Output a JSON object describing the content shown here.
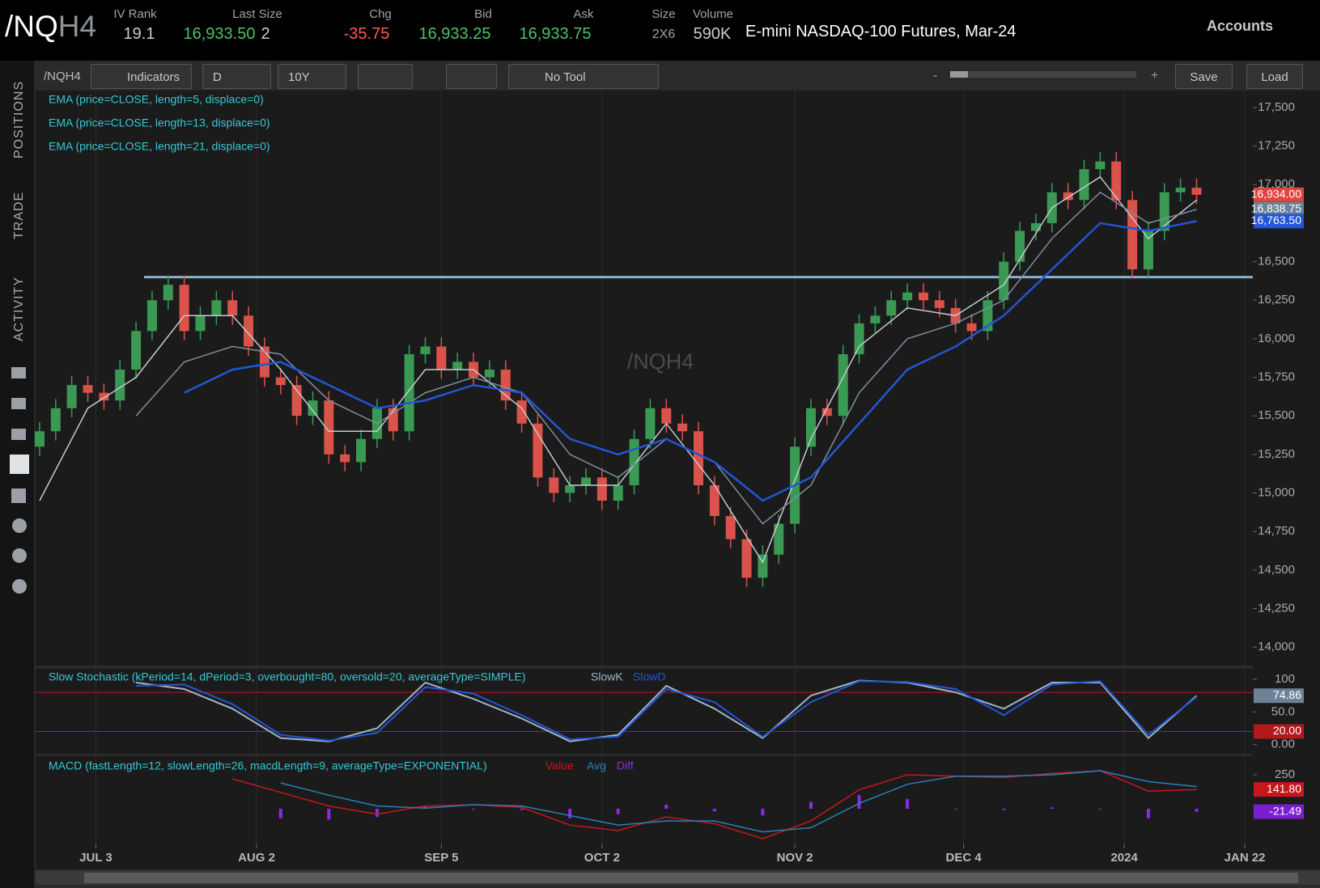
{
  "header": {
    "symbol_root": "/NQ",
    "symbol_month": "H4",
    "fields": [
      {
        "label": "IV Rank",
        "value": "19.1"
      },
      {
        "label": "Last Size",
        "value": "16,933.50",
        "size": "2"
      },
      {
        "label": "Chg",
        "value": "-35.75"
      },
      {
        "label": "Bid",
        "value": "16,933.25"
      },
      {
        "label": "Ask",
        "value": "16,933.75"
      },
      {
        "label": "Size",
        "value": "2X6"
      },
      {
        "label": "Volume",
        "value": "590K"
      }
    ],
    "description": "E-mini NASDAQ-100 Futures, Mar-24",
    "accounts": "Accounts"
  },
  "sidebar": {
    "tabs": [
      "POSITIONS",
      "TRADE",
      "ACTIVITY"
    ]
  },
  "toolbar": {
    "symbol": "/NQH4",
    "indicators": "Indicators",
    "aggregation": "D",
    "range": "10Y",
    "tool": "No Tool",
    "zoom_out": "-",
    "zoom_in": "+",
    "save": "Save",
    "load": "Load"
  },
  "chart_data": {
    "type": "candlestick",
    "watermark": "/NQH4",
    "x": [
      -7,
      -5,
      -3,
      -1,
      1,
      3,
      5,
      7,
      9,
      11,
      13,
      15,
      17,
      19,
      21,
      23,
      25,
      27,
      29,
      31,
      33,
      35,
      37,
      39,
      41,
      43,
      45,
      47,
      49,
      51,
      53,
      55,
      57,
      59,
      61,
      63,
      65,
      67,
      69,
      71,
      73,
      75,
      77,
      79,
      81,
      83,
      85,
      87,
      89,
      91,
      93,
      95,
      97,
      99,
      101,
      103,
      105,
      107,
      109,
      111,
      113,
      115,
      117,
      119,
      121,
      123,
      125,
      127,
      129,
      131,
      133,
      135,
      137
    ],
    "open": [
      15300,
      15400,
      15550,
      15700,
      15650,
      15600,
      15800,
      16050,
      16250,
      16350,
      16050,
      16150,
      16250,
      16150,
      15950,
      15750,
      15700,
      15500,
      15600,
      15250,
      15200,
      15350,
      15550,
      15400,
      15900,
      15950,
      15800,
      15850,
      15750,
      15800,
      15600,
      15450,
      15100,
      15000,
      15050,
      15100,
      14950,
      15050,
      15350,
      15550,
      15450,
      15400,
      15050,
      14850,
      14700,
      14450,
      14600,
      14800,
      15300,
      15550,
      15500,
      15900,
      16100,
      16150,
      16250,
      16300,
      16250,
      16200,
      16100,
      16050,
      16250,
      16500,
      16700,
      16750,
      16950,
      16900,
      17100,
      17150,
      16900,
      16450,
      16700,
      16950,
      16980
    ],
    "high": [
      15460,
      15610,
      15760,
      15760,
      15710,
      15860,
      16110,
      16310,
      16410,
      16410,
      16210,
      16310,
      16310,
      16210,
      16010,
      15810,
      15760,
      15660,
      15660,
      15310,
      15410,
      15610,
      15610,
      15960,
      16010,
      16010,
      15910,
      15910,
      15860,
      15860,
      15660,
      15510,
      15160,
      15110,
      15160,
      15160,
      15110,
      15410,
      15610,
      15610,
      15510,
      15460,
      15110,
      14910,
      14760,
      14660,
      14860,
      15360,
      15610,
      15610,
      15960,
      16160,
      16210,
      16310,
      16360,
      16360,
      16310,
      16260,
      16160,
      16310,
      16560,
      16760,
      16810,
      17010,
      17010,
      17160,
      17210,
      17210,
      16960,
      16760,
      17010,
      17040,
      17040
    ],
    "low": [
      15240,
      15340,
      15490,
      15590,
      15540,
      15540,
      15740,
      15990,
      16190,
      15990,
      15990,
      16090,
      16090,
      15890,
      15690,
      15640,
      15440,
      15440,
      15190,
      15140,
      15140,
      15290,
      15340,
      15340,
      15840,
      15740,
      15740,
      15690,
      15690,
      15540,
      15390,
      15040,
      14940,
      14940,
      14990,
      14890,
      14890,
      14990,
      15290,
      15390,
      15340,
      14990,
      14790,
      14640,
      14390,
      14390,
      14540,
      14740,
      15240,
      15440,
      15440,
      15840,
      16040,
      16090,
      16190,
      16190,
      16140,
      16040,
      15990,
      15990,
      16190,
      16440,
      16640,
      16690,
      16840,
      16840,
      17040,
      16840,
      16390,
      16390,
      16640,
      16890,
      16874
    ],
    "close": [
      15400,
      15550,
      15700,
      15650,
      15600,
      15800,
      16050,
      16250,
      16350,
      16050,
      16150,
      16250,
      16150,
      15950,
      15750,
      15700,
      15500,
      15600,
      15250,
      15200,
      15350,
      15550,
      15400,
      15900,
      15950,
      15800,
      15850,
      15750,
      15800,
      15600,
      15450,
      15100,
      15000,
      15050,
      15100,
      14950,
      15050,
      15350,
      15550,
      15450,
      15400,
      15050,
      14850,
      14700,
      14450,
      14600,
      14800,
      15300,
      15550,
      15500,
      15900,
      16100,
      16150,
      16250,
      16300,
      16250,
      16200,
      16100,
      16050,
      16250,
      16500,
      16700,
      16750,
      16950,
      16900,
      17100,
      17150,
      16900,
      16450,
      16700,
      16950,
      16980,
      16934
    ],
    "up_color": "#3a9a54",
    "down_color": "#d9534a",
    "last_price_label": "16,934.00",
    "xlim": [
      -7.5,
      144
    ],
    "xticks": [
      {
        "value": 0,
        "label": "JUL 3"
      },
      {
        "value": 20,
        "label": "AUG 2"
      },
      {
        "value": 43,
        "label": "SEP 5"
      },
      {
        "value": 63,
        "label": "OCT 2"
      },
      {
        "value": 87,
        "label": "NOV 2"
      },
      {
        "value": 108,
        "label": "DEC 4"
      },
      {
        "value": 128,
        "label": "2024"
      },
      {
        "value": 143,
        "label": "JAN 22"
      }
    ],
    "ylim": [
      13880,
      17610
    ],
    "yticks": [
      {
        "value": 14000,
        "label": "14,000"
      },
      {
        "value": 14250,
        "label": "14,250"
      },
      {
        "value": 14500,
        "label": "14,500"
      },
      {
        "value": 14750,
        "label": "14,750"
      },
      {
        "value": 15000,
        "label": "15,000"
      },
      {
        "value": 15250,
        "label": "15,250"
      },
      {
        "value": 15500,
        "label": "15,500"
      },
      {
        "value": 15750,
        "label": "15,750"
      },
      {
        "value": 16000,
        "label": "16,000"
      },
      {
        "value": 16250,
        "label": "16,250"
      },
      {
        "value": 16500,
        "label": "16,500"
      },
      {
        "value": 16750,
        "label": "16,750"
      },
      {
        "value": 17000,
        "label": "17,000"
      },
      {
        "value": 17250,
        "label": "17,250"
      },
      {
        "value": 17500,
        "label": "17,500"
      }
    ],
    "reference_line": 16400,
    "study_x": [
      -7,
      -1,
      5,
      11,
      17,
      23,
      29,
      35,
      41,
      47,
      53,
      59,
      65,
      71,
      77,
      83,
      89,
      95,
      101,
      107,
      113,
      119,
      125,
      131,
      137
    ],
    "studies": [
      {
        "name": "EMA (price=CLOSE, length=5, displace=0)",
        "color": "#c3cad2",
        "values": [
          14950,
          15550,
          15750,
          16150,
          16150,
          15800,
          15400,
          15400,
          15800,
          15800,
          15550,
          15050,
          15050,
          15450,
          15050,
          14550,
          15350,
          15950,
          16200,
          16150,
          16350,
          16850,
          17050,
          16650,
          16900
        ]
      },
      {
        "name": "EMA (price=CLOSE, length=13, displace=0)",
        "color": "#7d8ea0",
        "last_label": "16,838.75",
        "values": [
          null,
          null,
          15500,
          15850,
          15950,
          15900,
          15600,
          15450,
          15650,
          15750,
          15650,
          15250,
          15100,
          15350,
          15200,
          14800,
          15050,
          15650,
          16000,
          16100,
          16250,
          16650,
          16950,
          16750,
          16838.75
        ]
      },
      {
        "name": "EMA (price=CLOSE, length=21, displace=0)",
        "color": "#2256d6",
        "last_label": "16,763.50",
        "values": [
          null,
          null,
          null,
          15650,
          15800,
          15850,
          15700,
          15550,
          15600,
          15700,
          15650,
          15350,
          15250,
          15350,
          15200,
          14950,
          15100,
          15450,
          15800,
          15950,
          16150,
          16450,
          16750,
          16700,
          16763.5
        ]
      }
    ],
    "stochastic": {
      "title": "Slow Stochastic (kPeriod=14, dPeriod=3, overbought=80, oversold=20, averageType=SIMPLE)",
      "ylim": [
        -14,
        116
      ],
      "yticks": [
        100,
        {
          "value": 50,
          "label": "50.0"
        },
        {
          "value": 0,
          "label": "0.00"
        }
      ],
      "overbought": 80,
      "oversold": 20,
      "oversold_label": "20.00",
      "level_color": "#b3181c",
      "series": [
        {
          "name": "SlowK",
          "color": "#9fb4c8",
          "last_label": "74.86",
          "values": [
            null,
            null,
            95,
            85,
            55,
            10,
            5,
            25,
            95,
            70,
            40,
            5,
            15,
            90,
            55,
            10,
            75,
            98,
            95,
            80,
            55,
            95,
            95,
            10,
            74.86
          ]
        },
        {
          "name": "SlowD",
          "color": "#2256d6",
          "values": [
            null,
            null,
            90,
            92,
            62,
            15,
            6,
            18,
            88,
            78,
            45,
            8,
            12,
            85,
            65,
            12,
            65,
            97,
            96,
            85,
            45,
            92,
            97,
            15,
            73
          ]
        }
      ]
    },
    "macd": {
      "title": "MACD (fastLength=12, slowLength=26, macdLength=9, averageType=EXPONENTIAL)",
      "ylim": [
        -256,
        387
      ],
      "yticks": [
        250
      ],
      "series": [
        {
          "name": "Value",
          "color": "#c8161d",
          "last_label": "141.80",
          "values": [
            null,
            null,
            null,
            null,
            220,
            120,
            20,
            -40,
            20,
            30,
            10,
            -120,
            -160,
            -60,
            -110,
            -220,
            -90,
            140,
            250,
            240,
            230,
            260,
            280,
            130,
            141.8
          ]
        },
        {
          "name": "Avg",
          "color": "#2b7fb8",
          "values": [
            null,
            null,
            null,
            null,
            null,
            190,
            100,
            20,
            5,
            30,
            20,
            -50,
            -120,
            -90,
            -90,
            -170,
            -140,
            40,
            180,
            240,
            240,
            250,
            280,
            200,
            163.29
          ]
        }
      ],
      "diff": {
        "name": "Diff",
        "color": "#8a2be2",
        "last_label": "-21.49",
        "values": [
          null,
          null,
          null,
          null,
          null,
          -70,
          -80,
          -60,
          15,
          0,
          -10,
          -70,
          -40,
          30,
          -20,
          -50,
          50,
          100,
          70,
          0,
          -10,
          10,
          0,
          -70,
          -21.49
        ]
      }
    }
  }
}
